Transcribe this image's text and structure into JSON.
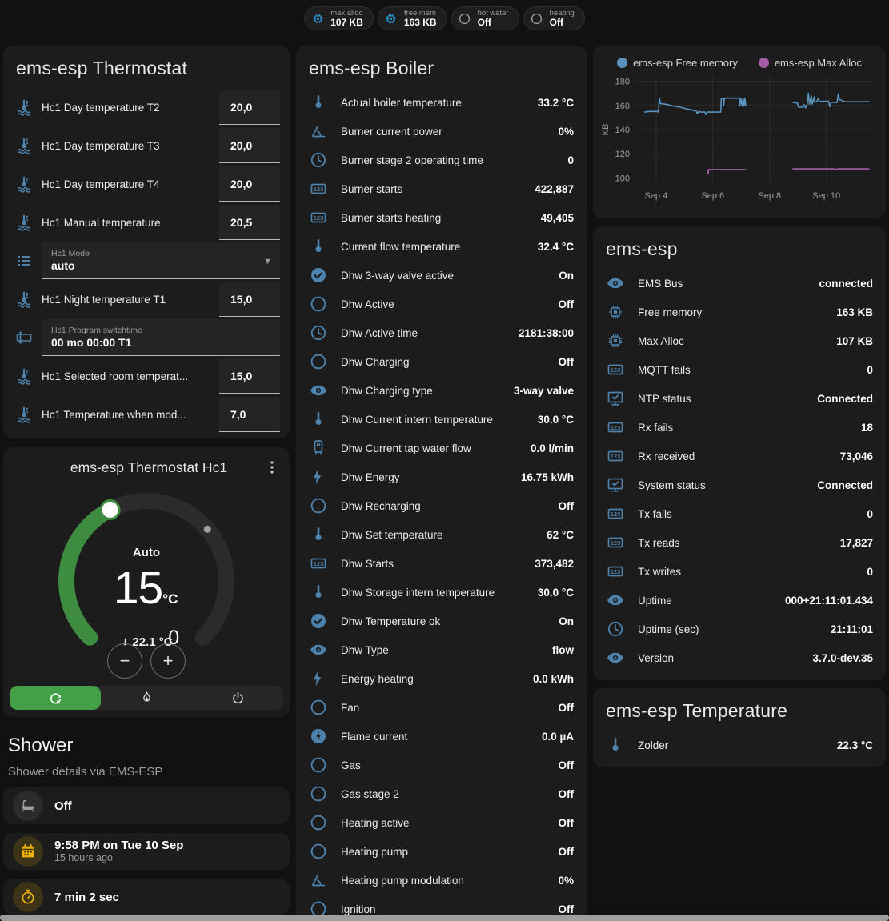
{
  "colors": {
    "accent_blue": "#4d82ad",
    "badge_blue": "#2d9fe8",
    "green": "#43a047",
    "amber": "#edb105",
    "gray": "#9e9e9e",
    "chart_blue": "#5a93bd",
    "chart_purple": "#a55ca5"
  },
  "badges": [
    {
      "icon": "chip-icon",
      "icon_color": "#2d9fe8",
      "label": "max alloc",
      "value": "107 KB"
    },
    {
      "icon": "chip-icon",
      "icon_color": "#2d9fe8",
      "label": "free mem",
      "value": "163 KB"
    },
    {
      "icon": "circle-outline-icon",
      "icon_color": "#9e9e9e",
      "label": "hot water",
      "value": "Off"
    },
    {
      "icon": "circle-outline-icon",
      "icon_color": "#9e9e9e",
      "label": "heating",
      "value": "Off"
    }
  ],
  "thermostat_card": {
    "title": "ems-esp Thermostat",
    "rows": [
      {
        "type": "number",
        "icon": "home-thermometer-icon",
        "label": "Hc1 Day temperature T2",
        "value": "20,0"
      },
      {
        "type": "number",
        "icon": "home-thermometer-icon",
        "label": "Hc1 Day temperature T3",
        "value": "20,0"
      },
      {
        "type": "number",
        "icon": "home-thermometer-icon",
        "label": "Hc1 Day temperature T4",
        "value": "20,0"
      },
      {
        "type": "number",
        "icon": "home-thermometer-icon",
        "label": "Hc1 Manual temperature",
        "value": "20,5"
      },
      {
        "type": "select",
        "icon": "list-icon",
        "label": "Hc1 Mode",
        "value": "auto"
      },
      {
        "type": "number",
        "icon": "home-thermometer-icon",
        "label": "Hc1 Night temperature T1",
        "value": "15,0"
      },
      {
        "type": "text",
        "icon": "textbox-icon",
        "label": "Hc1 Program switchtime",
        "value": "00 mo 00:00 T1"
      },
      {
        "type": "number",
        "icon": "home-thermometer-icon",
        "label": "Hc1 Selected room temperat...",
        "value": "15,0"
      },
      {
        "type": "number",
        "icon": "home-thermometer-icon",
        "label": "Hc1 Temperature when mod...",
        "value": "7,0"
      }
    ]
  },
  "dial_card": {
    "title": "ems-esp Thermostat Hc1",
    "mode_label": "Auto",
    "target_int": "15",
    "target_unit": "°C",
    "target_dec": ".0",
    "current_label": "22.1 °C",
    "target": 15.0,
    "current": 22.1,
    "min": 5,
    "max": 30,
    "minus_label": "−",
    "plus_label": "+",
    "modes": [
      {
        "icon": "auto-mode-icon",
        "active": true
      },
      {
        "icon": "flame-icon",
        "active": false
      },
      {
        "icon": "power-icon",
        "active": false
      }
    ]
  },
  "shower": {
    "title": "Shower",
    "subtitle": "Shower details via EMS-ESP",
    "cards": [
      {
        "type": "state",
        "icon": "bathtub-icon",
        "tone": "gray",
        "primary": "Off",
        "secondary": ""
      },
      {
        "type": "state",
        "icon": "calendar-icon",
        "tone": "amber",
        "primary": "9:58 PM on Tue 10 Sep",
        "secondary": "15 hours ago"
      },
      {
        "type": "state",
        "icon": "timer-icon",
        "tone": "amber",
        "primary": "7 min 2 sec",
        "secondary": ""
      },
      {
        "type": "icon-only",
        "icon": "snowflake-alert-icon",
        "tone": "blue",
        "primary": "",
        "secondary": ""
      }
    ]
  },
  "boiler_card": {
    "title": "ems-esp Boiler",
    "rows": [
      {
        "icon": "thermometer-icon",
        "label": "Actual boiler temperature",
        "value": "33.2 °C"
      },
      {
        "icon": "angle-icon",
        "label": "Burner current power",
        "value": "0%"
      },
      {
        "icon": "clock-icon",
        "label": "Burner stage 2 operating time",
        "value": "0"
      },
      {
        "icon": "counter-icon",
        "label": "Burner starts",
        "value": "422,887"
      },
      {
        "icon": "counter-icon",
        "label": "Burner starts heating",
        "value": "49,405"
      },
      {
        "icon": "thermometer-icon",
        "label": "Current flow temperature",
        "value": "32.4 °C"
      },
      {
        "icon": "check-circle-icon",
        "label": "Dhw 3-way valve active",
        "value": "On"
      },
      {
        "icon": "circle-outline-icon",
        "label": "Dhw Active",
        "value": "Off"
      },
      {
        "icon": "clock-icon",
        "label": "Dhw Active time",
        "value": "2181:38:00"
      },
      {
        "icon": "circle-outline-icon",
        "label": "Dhw Charging",
        "value": "Off"
      },
      {
        "icon": "eye-icon",
        "label": "Dhw Charging type",
        "value": "3-way valve"
      },
      {
        "icon": "thermometer-icon",
        "label": "Dhw Current intern temperature",
        "value": "30.0 °C"
      },
      {
        "icon": "water-boiler-icon",
        "label": "Dhw Current tap water flow",
        "value": "0.0 l/min"
      },
      {
        "icon": "flash-icon",
        "label": "Dhw Energy",
        "value": "16.75 kWh"
      },
      {
        "icon": "circle-outline-icon",
        "label": "Dhw Recharging",
        "value": "Off"
      },
      {
        "icon": "thermometer-icon",
        "label": "Dhw Set temperature",
        "value": "62 °C"
      },
      {
        "icon": "counter-icon",
        "label": "Dhw Starts",
        "value": "373,482"
      },
      {
        "icon": "thermometer-icon",
        "label": "Dhw Storage intern temperature",
        "value": "30.0 °C"
      },
      {
        "icon": "check-circle-icon",
        "label": "Dhw Temperature ok",
        "value": "On"
      },
      {
        "icon": "eye-icon",
        "label": "Dhw Type",
        "value": "flow"
      },
      {
        "icon": "flash-icon",
        "label": "Energy heating",
        "value": "0.0 kWh"
      },
      {
        "icon": "circle-outline-icon",
        "label": "Fan",
        "value": "Off"
      },
      {
        "icon": "flash-circle-icon",
        "label": "Flame current",
        "value": "0.0 µA"
      },
      {
        "icon": "circle-outline-icon",
        "label": "Gas",
        "value": "Off"
      },
      {
        "icon": "circle-outline-icon",
        "label": "Gas stage 2",
        "value": "Off"
      },
      {
        "icon": "circle-outline-icon",
        "label": "Heating active",
        "value": "Off"
      },
      {
        "icon": "circle-outline-icon",
        "label": "Heating pump",
        "value": "Off"
      },
      {
        "icon": "angle-icon",
        "label": "Heating pump modulation",
        "value": "0%"
      },
      {
        "icon": "circle-outline-icon",
        "label": "Ignition",
        "value": "Off"
      }
    ]
  },
  "esp_card": {
    "title": "ems-esp",
    "rows": [
      {
        "icon": "eye-icon",
        "label": "EMS Bus",
        "value": "connected"
      },
      {
        "icon": "chip-icon",
        "label": "Free memory",
        "value": "163 KB"
      },
      {
        "icon": "chip-icon",
        "label": "Max Alloc",
        "value": "107 KB"
      },
      {
        "icon": "counter-icon",
        "label": "MQTT fails",
        "value": "0"
      },
      {
        "icon": "monitor-check-icon",
        "label": "NTP status",
        "value": "Connected"
      },
      {
        "icon": "counter-icon",
        "label": "Rx fails",
        "value": "18"
      },
      {
        "icon": "counter-icon",
        "label": "Rx received",
        "value": "73,046"
      },
      {
        "icon": "monitor-check-icon",
        "label": "System status",
        "value": "Connected"
      },
      {
        "icon": "counter-icon",
        "label": "Tx fails",
        "value": "0"
      },
      {
        "icon": "counter-icon",
        "label": "Tx reads",
        "value": "17,827"
      },
      {
        "icon": "counter-icon",
        "label": "Tx writes",
        "value": "0"
      },
      {
        "icon": "eye-icon",
        "label": "Uptime",
        "value": "000+21:11:01.434"
      },
      {
        "icon": "clock-icon",
        "label": "Uptime (sec)",
        "value": "21:11:01"
      },
      {
        "icon": "eye-icon",
        "label": "Version",
        "value": "3.7.0-dev.35"
      }
    ]
  },
  "temp_card": {
    "title": "ems-esp Temperature",
    "rows": [
      {
        "icon": "thermometer-icon",
        "label": "Zolder",
        "value": "22.3 °C"
      }
    ]
  },
  "chart_data": {
    "type": "line",
    "title": "",
    "xlabel": "",
    "ylabel": "KB",
    "ylim": [
      95,
      185
    ],
    "xlim": [
      3.3,
      11.7
    ],
    "y_ticks": [
      100,
      120,
      140,
      160,
      180
    ],
    "x_ticks": [
      {
        "x": 4,
        "label": "Sep 4"
      },
      {
        "x": 6,
        "label": "Sep 6"
      },
      {
        "x": 8,
        "label": "Sep 8"
      },
      {
        "x": 10,
        "label": "Sep 10"
      }
    ],
    "grid": true,
    "legend_position": "top",
    "series": [
      {
        "name": "ems-esp Free memory",
        "color": "#5a93bd",
        "segments": [
          [
            [
              3.6,
              154.5
            ],
            [
              3.75,
              155
            ],
            [
              4.05,
              155
            ],
            [
              4.08,
              154.5
            ],
            [
              4.12,
              166
            ],
            [
              4.15,
              161.5
            ],
            [
              4.35,
              161
            ],
            [
              4.6,
              159.5
            ],
            [
              4.85,
              158.5
            ],
            [
              5.1,
              157
            ],
            [
              5.3,
              156
            ],
            [
              5.42,
              155.5
            ],
            [
              5.45,
              153
            ],
            [
              5.5,
              155
            ],
            [
              5.58,
              154.5
            ],
            [
              5.72,
              154.5
            ],
            [
              5.75,
              152.5
            ],
            [
              5.8,
              154.5
            ],
            [
              6.28,
              154.5
            ],
            [
              6.3,
              166
            ],
            [
              6.36,
              166
            ],
            [
              6.38,
              159.5
            ],
            [
              6.41,
              166
            ],
            [
              6.93,
              166
            ],
            [
              6.95,
              159.5
            ],
            [
              6.99,
              166
            ],
            [
              7.03,
              159.5
            ],
            [
              7.07,
              166
            ],
            [
              7.1,
              159.5
            ],
            [
              7.13,
              166
            ],
            [
              7.16,
              159.8
            ]
          ],
          [
            [
              8.82,
              162.5
            ],
            [
              8.98,
              162
            ],
            [
              9.02,
              158.5
            ],
            [
              9.18,
              158.5
            ],
            [
              9.22,
              160.5
            ],
            [
              9.27,
              158
            ],
            [
              9.32,
              161
            ],
            [
              9.37,
              170
            ],
            [
              9.4,
              161
            ],
            [
              9.47,
              168
            ],
            [
              9.5,
              161
            ],
            [
              9.57,
              167
            ],
            [
              9.6,
              162.5
            ],
            [
              9.67,
              163.5
            ],
            [
              9.72,
              166
            ],
            [
              9.75,
              163
            ],
            [
              9.88,
              163.5
            ],
            [
              10.08,
              163.5
            ],
            [
              10.12,
              159
            ],
            [
              10.17,
              162.5
            ],
            [
              10.38,
              162.5
            ],
            [
              10.42,
              169.5
            ],
            [
              10.46,
              165
            ],
            [
              10.55,
              164
            ],
            [
              10.68,
              163
            ],
            [
              11.5,
              163
            ]
          ]
        ]
      },
      {
        "name": "ems-esp Max Alloc",
        "color": "#a55ca5",
        "segments": [
          [
            [
              5.8,
              107
            ],
            [
              5.83,
              103.5
            ],
            [
              5.86,
              107
            ],
            [
              7.16,
              107
            ]
          ],
          [
            [
              8.82,
              107.5
            ],
            [
              10.3,
              107.5
            ],
            [
              10.34,
              106.8
            ],
            [
              10.38,
              107.5
            ],
            [
              11.5,
              107.5
            ]
          ]
        ]
      }
    ]
  }
}
